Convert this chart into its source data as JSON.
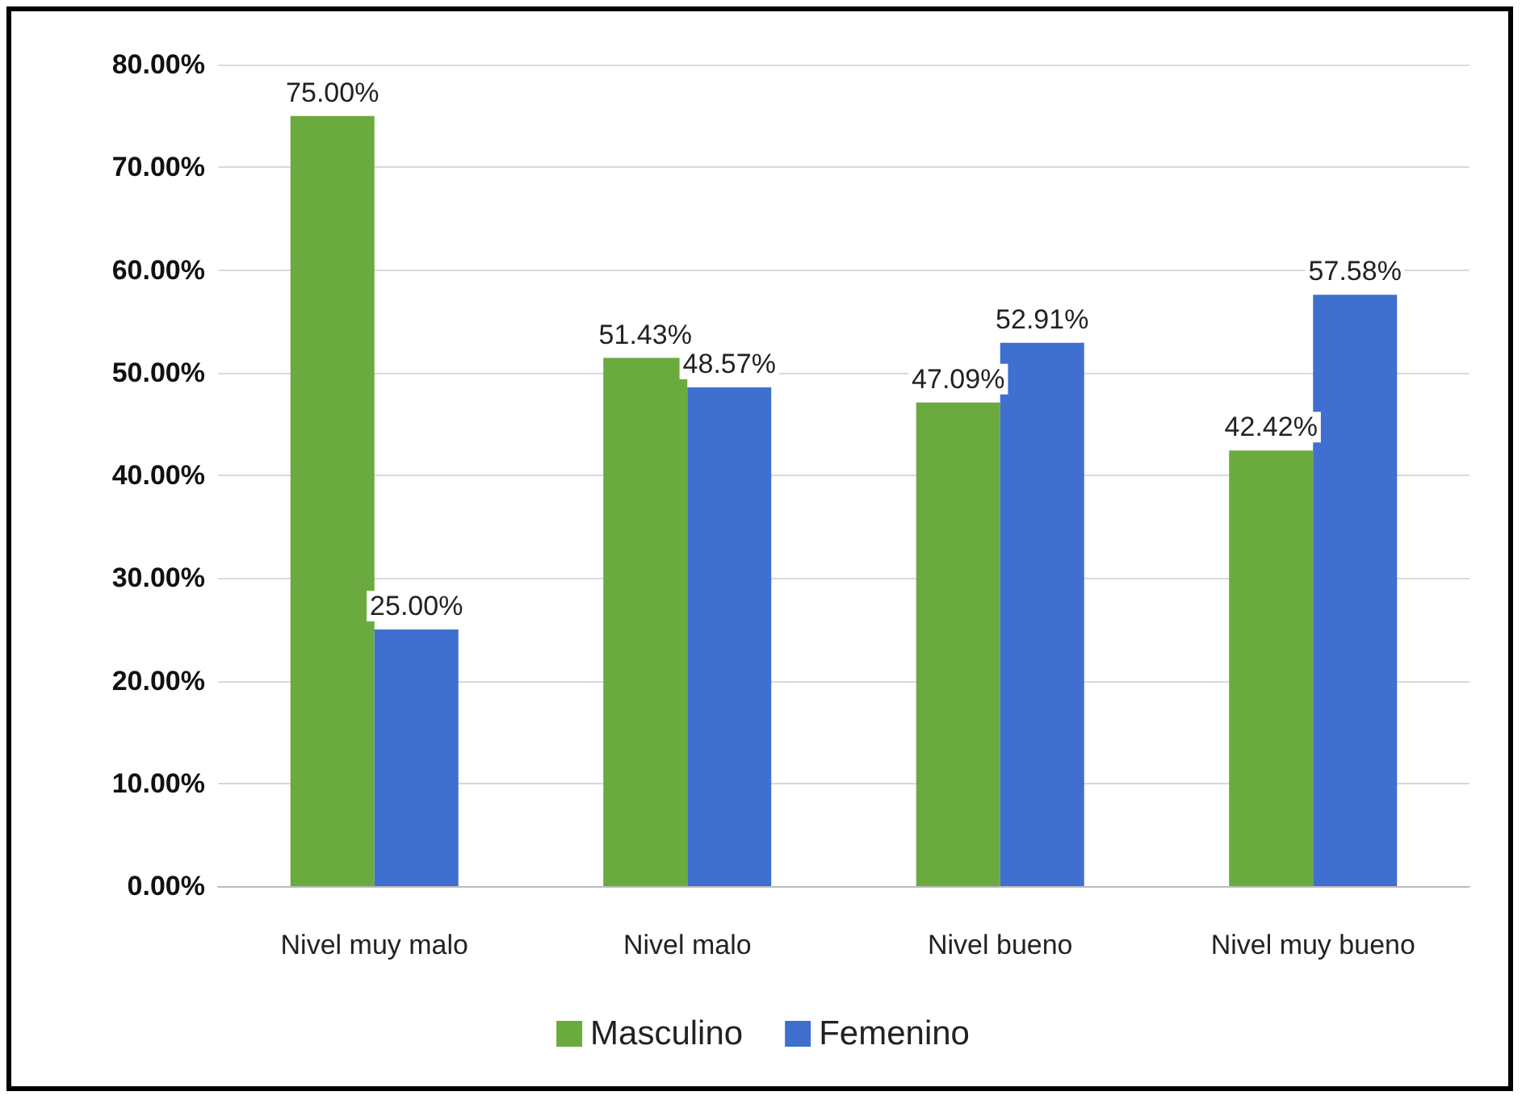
{
  "chart_data": {
    "type": "bar",
    "categories": [
      "Nivel muy malo",
      "Nivel malo",
      "Nivel bueno",
      "Nivel muy bueno"
    ],
    "series": [
      {
        "name": "Masculino",
        "color": "#6aaa3e",
        "values": [
          75,
          51.43,
          47.09,
          42.42
        ],
        "value_labels": [
          "75.00%",
          "51.43%",
          "47.09%",
          "42.42%"
        ]
      },
      {
        "name": "Femenino",
        "color": "#3f6fcf",
        "values": [
          25,
          48.57,
          52.91,
          57.58
        ],
        "value_labels": [
          "25.00%",
          "48.57%",
          "52.91%",
          "57.58%"
        ]
      }
    ],
    "ylim": [
      0,
      80
    ],
    "yticks": [
      {
        "value": 0,
        "label": "0.00%"
      },
      {
        "value": 10,
        "label": "10.00%"
      },
      {
        "value": 20,
        "label": "20.00%"
      },
      {
        "value": 30,
        "label": "30.00%"
      },
      {
        "value": 40,
        "label": "40.00%"
      },
      {
        "value": 50,
        "label": "50.00%"
      },
      {
        "value": 60,
        "label": "60.00%"
      },
      {
        "value": 70,
        "label": "70.00%"
      },
      {
        "value": 80,
        "label": "80.00%"
      }
    ],
    "grid": "y",
    "legend": "bottom"
  }
}
